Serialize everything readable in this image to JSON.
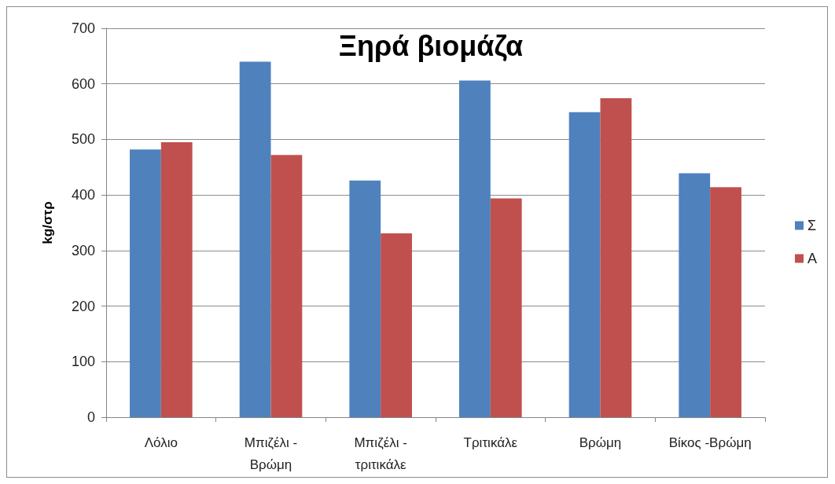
{
  "chart_data": {
    "type": "bar",
    "title": "Ξηρά βιομάζα",
    "ylabel": "kg/στρ",
    "categories": [
      "Λόλιο",
      "Μπιζέλι - Βρώμη",
      "Μπιζέλι - τριτικάλε",
      "Τριτικάλε",
      "Βρώμη",
      "Βίκος -Βρώμη"
    ],
    "series": [
      {
        "name": "Σ",
        "color": "#4f81bd",
        "values": [
          482,
          640,
          426,
          606,
          549,
          439
        ]
      },
      {
        "name": "Α",
        "color": "#c0504d",
        "values": [
          495,
          472,
          331,
          394,
          574,
          414
        ]
      }
    ],
    "ylim": [
      0,
      700
    ],
    "yticks": [
      0,
      100,
      200,
      300,
      400,
      500,
      600,
      700
    ],
    "grid": "y",
    "legend": "right"
  }
}
